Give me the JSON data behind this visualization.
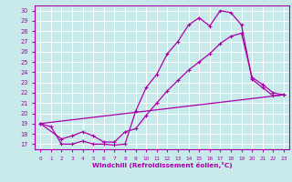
{
  "xlabel": "Windchill (Refroidissement éolien,°C)",
  "bg_color": "#c8eaea",
  "grid_color": "#ffffff",
  "line_color": "#aa00aa",
  "xlim": [
    -0.5,
    23.5
  ],
  "ylim": [
    16.5,
    30.5
  ],
  "yticks": [
    17,
    18,
    19,
    20,
    21,
    22,
    23,
    24,
    25,
    26,
    27,
    28,
    29,
    30
  ],
  "xticks": [
    0,
    1,
    2,
    3,
    4,
    5,
    6,
    7,
    8,
    9,
    10,
    11,
    12,
    13,
    14,
    15,
    16,
    17,
    18,
    19,
    20,
    21,
    22,
    23
  ],
  "line1_x": [
    0,
    1,
    2,
    3,
    4,
    5,
    6,
    7,
    8,
    9,
    10,
    11,
    12,
    13,
    14,
    15,
    16,
    17,
    18,
    19,
    20,
    21,
    22,
    23
  ],
  "line1_y": [
    19.0,
    18.7,
    17.0,
    17.0,
    17.3,
    17.0,
    17.0,
    16.9,
    17.0,
    20.2,
    22.5,
    23.8,
    25.8,
    27.0,
    28.6,
    29.3,
    28.5,
    30.0,
    29.8,
    28.6,
    23.3,
    22.5,
    21.7,
    21.8
  ],
  "line2_x": [
    0,
    2,
    3,
    4,
    5,
    6,
    7,
    8,
    9,
    10,
    11,
    12,
    13,
    14,
    15,
    16,
    17,
    18,
    19,
    20,
    21,
    22,
    23
  ],
  "line2_y": [
    19.0,
    17.5,
    17.8,
    18.2,
    17.8,
    17.2,
    17.2,
    18.2,
    18.5,
    19.8,
    21.0,
    22.2,
    23.2,
    24.2,
    25.0,
    25.8,
    26.8,
    27.5,
    27.8,
    23.5,
    22.8,
    22.0,
    21.8
  ],
  "line3_x": [
    0,
    23
  ],
  "line3_y": [
    19.0,
    21.8
  ]
}
